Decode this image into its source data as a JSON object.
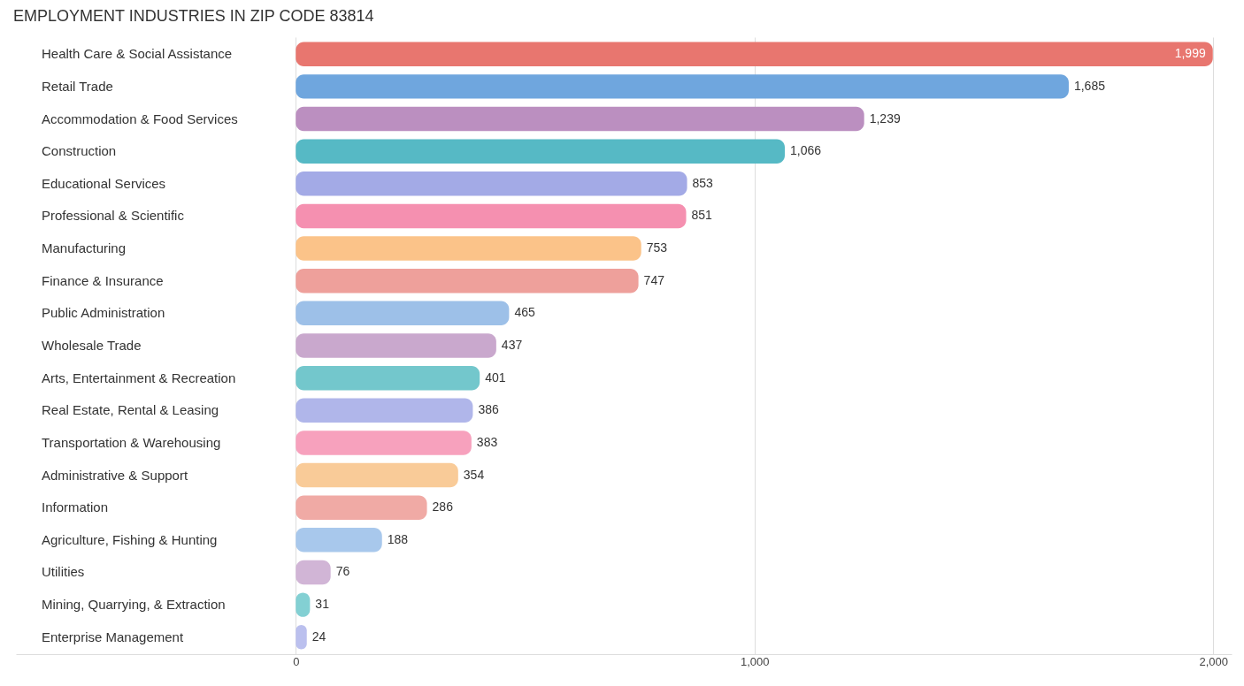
{
  "chart_data": {
    "type": "bar",
    "orientation": "horizontal",
    "title": "EMPLOYMENT INDUSTRIES IN ZIP CODE 83814",
    "categories": [
      "Health Care & Social Assistance",
      "Retail Trade",
      "Accommodation & Food Services",
      "Construction",
      "Educational Services",
      "Professional & Scientific",
      "Manufacturing",
      "Finance & Insurance",
      "Public Administration",
      "Wholesale Trade",
      "Arts, Entertainment & Recreation",
      "Real Estate, Rental & Leasing",
      "Transportation & Warehousing",
      "Administrative & Support",
      "Information",
      "Agriculture, Fishing & Hunting",
      "Utilities",
      "Mining, Quarrying, & Extraction",
      "Enterprise Management"
    ],
    "values": [
      1999,
      1685,
      1239,
      1066,
      853,
      851,
      753,
      747,
      465,
      437,
      401,
      386,
      383,
      354,
      286,
      188,
      76,
      31,
      24
    ],
    "value_labels": [
      "1,999",
      "1,685",
      "1,239",
      "1,066",
      "853",
      "851",
      "753",
      "747",
      "465",
      "437",
      "401",
      "386",
      "383",
      "354",
      "286",
      "188",
      "76",
      "31",
      "24"
    ],
    "colors": [
      "#e8766f",
      "#6fa6de",
      "#bb8fc0",
      "#56b9c5",
      "#a3aae6",
      "#f590b0",
      "#fbc389",
      "#eea09b",
      "#9dc0e8",
      "#c9a8cd",
      "#73c7cc",
      "#b0b6ea",
      "#f7a1bd",
      "#f9cb98",
      "#f0aaa5",
      "#a8c8ec",
      "#d1b5d6",
      "#83d0d3",
      "#bbc0ee"
    ],
    "xlim": [
      -610,
      2040
    ],
    "xticks": [
      0,
      {
        "value": 1000,
        "label": "1,000"
      },
      {
        "value": 2000,
        "label": "2,000"
      }
    ],
    "grid": "x"
  }
}
